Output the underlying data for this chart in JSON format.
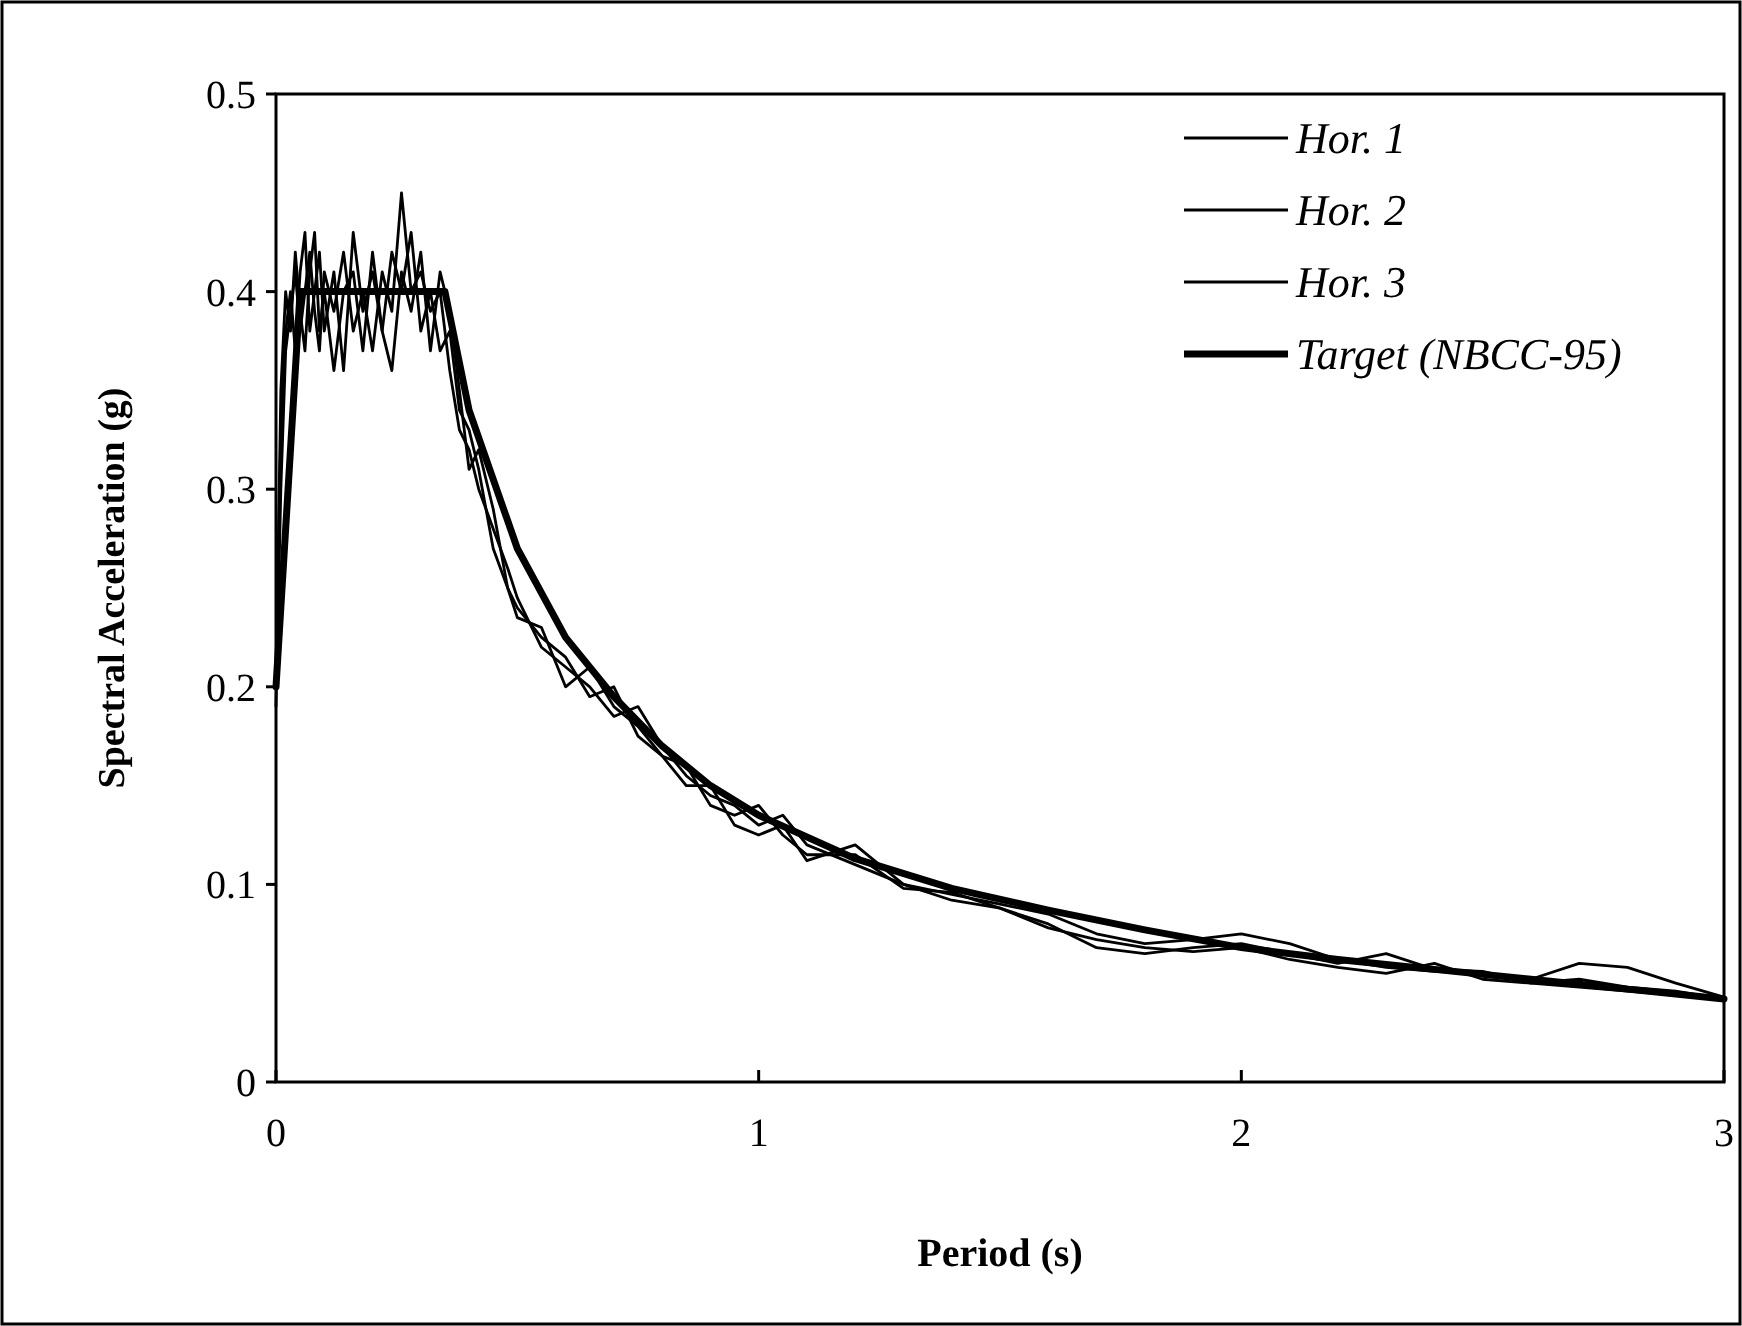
{
  "chart_data": {
    "type": "line",
    "xlabel": "Period (s)",
    "ylabel": "Spectral Acceleration (g)",
    "xlim": [
      0,
      3
    ],
    "ylim": [
      0,
      0.5
    ],
    "xticks": [
      0,
      1,
      2,
      3
    ],
    "yticks": [
      0,
      0.1,
      0.2,
      0.3,
      0.4,
      0.5
    ],
    "grid": false,
    "legend": "top right",
    "marker": "none",
    "line_style": "solid",
    "x": [
      0,
      0.01,
      0.02,
      0.03,
      0.04,
      0.05,
      0.06,
      0.07,
      0.08,
      0.09,
      0.1,
      0.12,
      0.14,
      0.16,
      0.18,
      0.2,
      0.22,
      0.24,
      0.26,
      0.28,
      0.3,
      0.32,
      0.34,
      0.36,
      0.38,
      0.4,
      0.42,
      0.45,
      0.48,
      0.5,
      0.55,
      0.6,
      0.65,
      0.7,
      0.75,
      0.8,
      0.85,
      0.9,
      0.95,
      1.0,
      1.05,
      1.1,
      1.2,
      1.3,
      1.4,
      1.5,
      1.6,
      1.7,
      1.8,
      1.9,
      2.0,
      2.1,
      2.2,
      2.3,
      2.4,
      2.5,
      2.6,
      2.7,
      2.8,
      2.9,
      3.0
    ],
    "series": [
      {
        "name": "Hor. 1",
        "color": "#000000",
        "values": [
          0.19,
          0.3,
          0.37,
          0.39,
          0.41,
          0.38,
          0.4,
          0.42,
          0.39,
          0.37,
          0.41,
          0.39,
          0.42,
          0.38,
          0.4,
          0.37,
          0.41,
          0.39,
          0.45,
          0.4,
          0.41,
          0.39,
          0.4,
          0.36,
          0.33,
          0.32,
          0.3,
          0.28,
          0.26,
          0.245,
          0.22,
          0.21,
          0.2,
          0.185,
          0.19,
          0.17,
          0.155,
          0.145,
          0.14,
          0.13,
          0.135,
          0.12,
          0.11,
          0.1,
          0.095,
          0.09,
          0.085,
          0.075,
          0.07,
          0.072,
          0.075,
          0.07,
          0.062,
          0.058,
          0.056,
          0.055,
          0.052,
          0.06,
          0.058,
          0.05,
          0.043
        ]
      },
      {
        "name": "Hor. 2",
        "color": "#000000",
        "values": [
          0.2,
          0.33,
          0.38,
          0.4,
          0.37,
          0.41,
          0.43,
          0.38,
          0.4,
          0.42,
          0.38,
          0.41,
          0.36,
          0.43,
          0.39,
          0.41,
          0.38,
          0.42,
          0.4,
          0.43,
          0.38,
          0.4,
          0.37,
          0.38,
          0.34,
          0.33,
          0.31,
          0.27,
          0.25,
          0.24,
          0.225,
          0.215,
          0.195,
          0.2,
          0.175,
          0.165,
          0.16,
          0.14,
          0.135,
          0.14,
          0.125,
          0.115,
          0.115,
          0.098,
          0.096,
          0.088,
          0.08,
          0.068,
          0.065,
          0.068,
          0.07,
          0.065,
          0.06,
          0.065,
          0.057,
          0.056,
          0.05,
          0.052,
          0.048,
          0.046,
          0.042
        ]
      },
      {
        "name": "Hor. 3",
        "color": "#000000",
        "values": [
          0.2,
          0.35,
          0.4,
          0.38,
          0.42,
          0.39,
          0.37,
          0.41,
          0.43,
          0.38,
          0.4,
          0.36,
          0.4,
          0.41,
          0.37,
          0.42,
          0.38,
          0.36,
          0.41,
          0.39,
          0.42,
          0.37,
          0.41,
          0.39,
          0.35,
          0.31,
          0.32,
          0.29,
          0.25,
          0.235,
          0.23,
          0.2,
          0.21,
          0.19,
          0.18,
          0.165,
          0.15,
          0.15,
          0.13,
          0.125,
          0.13,
          0.112,
          0.12,
          0.1,
          0.092,
          0.088,
          0.078,
          0.072,
          0.068,
          0.066,
          0.068,
          0.062,
          0.058,
          0.055,
          0.06,
          0.052,
          0.05,
          0.048,
          0.046,
          0.044,
          0.042
        ]
      },
      {
        "name": "Target (NBCC-95)",
        "color": "#000000",
        "x": [
          0,
          0.05,
          0.35,
          0.4,
          0.5,
          0.6,
          0.7,
          0.8,
          0.9,
          1.0,
          1.2,
          1.4,
          1.6,
          1.8,
          2.0,
          2.2,
          2.4,
          2.6,
          2.8,
          3.0
        ],
        "values": [
          0.2,
          0.4,
          0.4,
          0.34,
          0.27,
          0.225,
          0.195,
          0.17,
          0.15,
          0.135,
          0.113,
          0.098,
          0.087,
          0.077,
          0.068,
          0.062,
          0.057,
          0.052,
          0.047,
          0.042
        ]
      }
    ]
  }
}
